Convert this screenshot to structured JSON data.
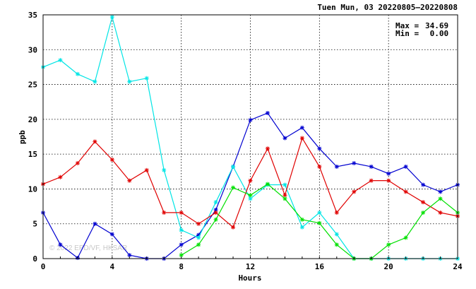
{
  "chart_data": {
    "type": "line",
    "title": "Tuen Mun, 03 20220805—20220808",
    "xlabel": "Hours",
    "ylabel": "ppb",
    "xlim": [
      0,
      24
    ],
    "ylim": [
      0,
      35
    ],
    "xticks": [
      0,
      4,
      8,
      12,
      16,
      20,
      24
    ],
    "yticks": [
      0,
      5,
      10,
      15,
      20,
      25,
      30,
      35
    ],
    "grid": true,
    "stats": {
      "max_label": "Max =",
      "max_value": "34.69",
      "min_label": "Min =",
      "min_value": " 0.00"
    },
    "watermark": "© 2022 EPD/VF, HKSAR",
    "series": [
      {
        "color": "#0000d0",
        "x": [
          0,
          1,
          2,
          3,
          4,
          5,
          6,
          7,
          8,
          9,
          10,
          11,
          12,
          13,
          14,
          15,
          16,
          17,
          18,
          19,
          20,
          21,
          22,
          23,
          24
        ],
        "y": [
          6.6,
          2.0,
          0.1,
          5.0,
          3.5,
          0.5,
          0.0,
          0.0,
          2.0,
          3.4,
          7.0,
          13.2,
          19.9,
          20.9,
          17.3,
          18.8,
          15.8,
          13.2,
          13.7,
          13.2,
          12.2,
          13.2,
          10.6,
          9.6,
          10.6
        ]
      },
      {
        "color": "#00e5e5",
        "x": [
          0,
          1,
          2,
          3,
          4,
          5,
          6,
          7,
          8,
          9,
          10,
          11,
          12,
          13,
          14,
          15,
          16,
          17,
          18,
          19,
          20,
          21,
          22,
          23,
          24
        ],
        "y": [
          27.5,
          28.5,
          26.5,
          25.4,
          34.69,
          25.4,
          25.9,
          12.7,
          4.1,
          3.0,
          8.1,
          13.2,
          8.6,
          10.6,
          10.6,
          4.5,
          6.6,
          3.5,
          0.0,
          0.0,
          0.0,
          0.0,
          0.0,
          0.0,
          0.0
        ]
      },
      {
        "color": "#e00000",
        "x": [
          0,
          1,
          2,
          3,
          4,
          5,
          6,
          7,
          8,
          9,
          10,
          11,
          12,
          13,
          14,
          15,
          16,
          17,
          18,
          19,
          20,
          21,
          22,
          23,
          24
        ],
        "y": [
          10.7,
          11.7,
          13.7,
          16.8,
          14.2,
          11.2,
          12.7,
          6.6,
          6.6,
          5.0,
          6.6,
          4.5,
          11.2,
          15.8,
          9.1,
          17.3,
          13.2,
          6.6,
          9.6,
          11.2,
          11.2,
          9.6,
          8.1,
          6.6,
          6.1
        ]
      },
      {
        "color": "#00e000",
        "x": [
          8,
          9,
          10,
          11,
          12,
          13,
          14,
          15,
          16,
          17,
          18,
          19,
          20,
          21,
          22,
          23,
          24
        ],
        "y": [
          0.5,
          2.0,
          5.6,
          10.2,
          9.1,
          10.7,
          8.6,
          5.6,
          5.1,
          2.0,
          0.0,
          0.0,
          2.0,
          3.0,
          6.6,
          8.6,
          6.6
        ]
      }
    ]
  }
}
